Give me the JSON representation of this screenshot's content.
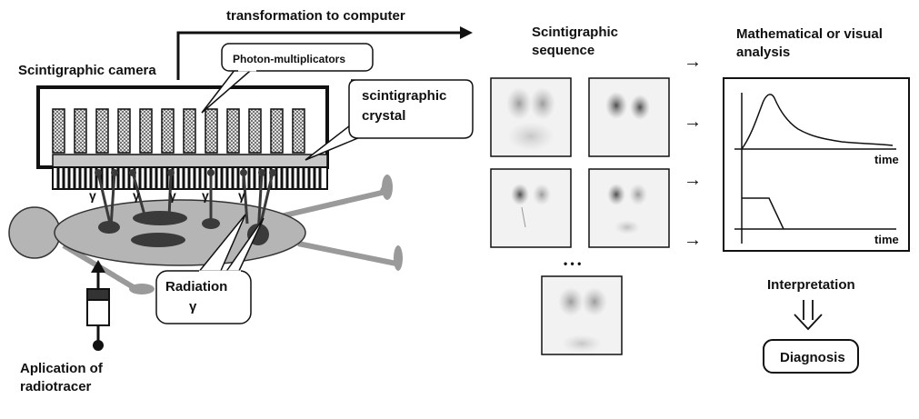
{
  "labels": {
    "transformation": "transformation to computer",
    "camera": "Scintigraphic camera",
    "photomult": "Photon-multiplicators",
    "crystal_line1": "scintigraphic",
    "crystal_line2": "crystal",
    "gamma": "γ",
    "radiation": "Radiation",
    "radiation_gamma": "γ",
    "application_line1": "Aplication of",
    "application_line2": "radiotracer",
    "sequence_line1": "Scintigraphic",
    "sequence_line2": "sequence",
    "ellipsis": "• • •",
    "analysis_line1": "Mathematical or visual",
    "analysis_line2": "analysis",
    "time_top": "time",
    "time_bottom": "time",
    "interpretation": "Interpretation",
    "diagnosis": "Diagnosis",
    "arrow": "→"
  },
  "colors": {
    "stroke": "#111111",
    "body_fill": "#b5b5b5",
    "body_dark": "#3a3a3a",
    "pmt_fill": "#8c8c8c",
    "crystal_fill": "#c8c8c8",
    "scan_bg": "#f2f2f2"
  },
  "icons": [
    "right-arrow-icon",
    "down-double-arrow-icon",
    "syringe-icon"
  ]
}
